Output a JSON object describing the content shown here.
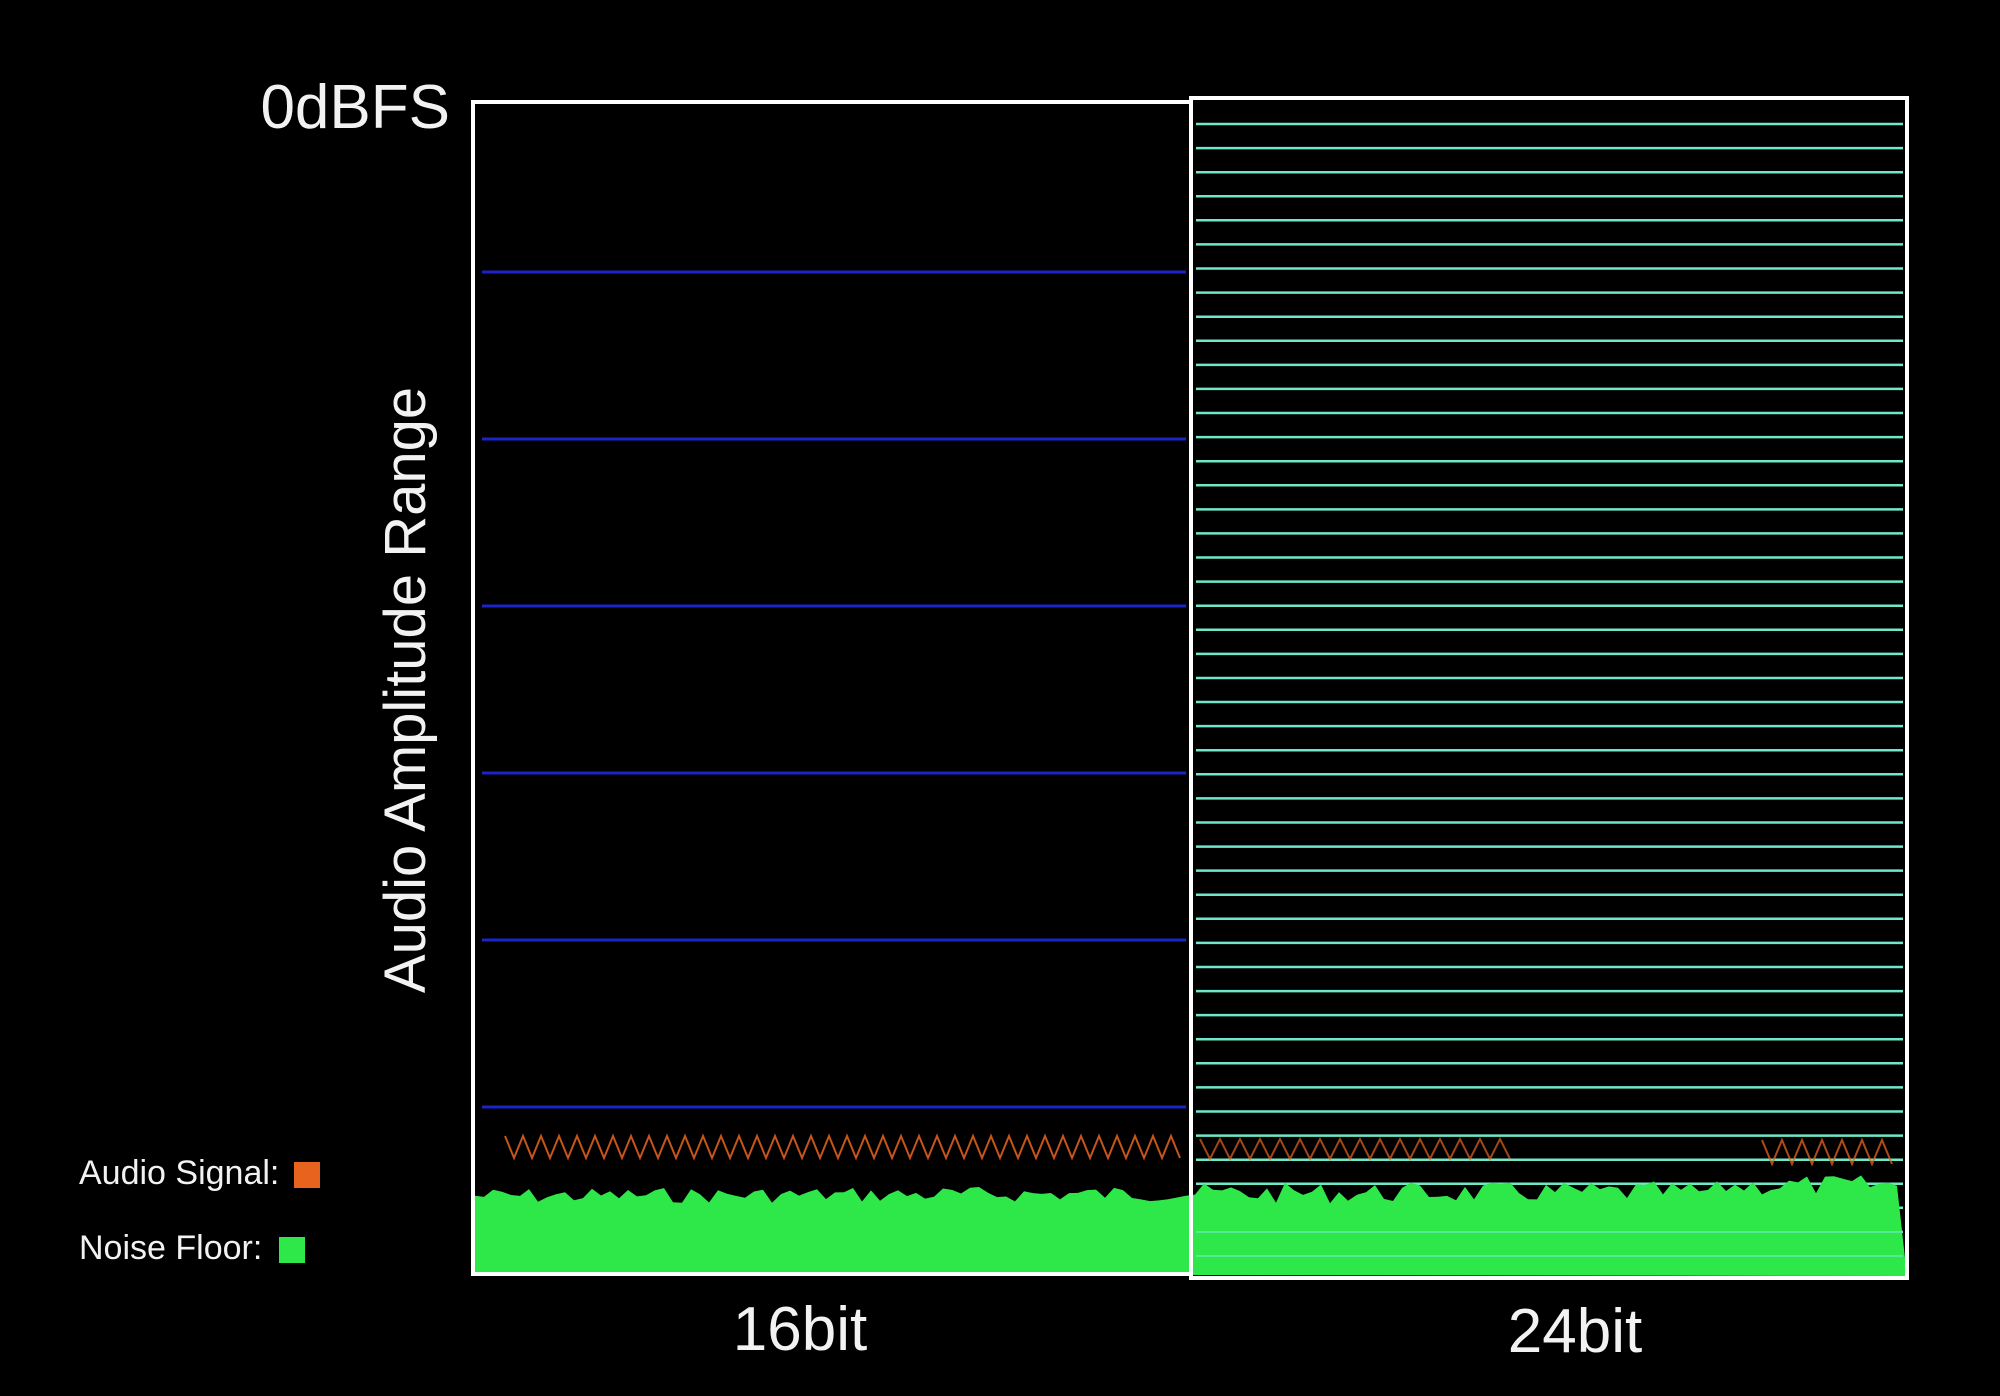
{
  "top_label": "0dBFS",
  "y_axis_label": "Audio Amplitude Range",
  "columns": [
    {
      "label": "16bit",
      "quantization_steps": 6
    },
    {
      "label": "24bit",
      "quantization_steps": 48
    }
  ],
  "legend": [
    {
      "label": "Audio Signal:",
      "color": "#e8641e"
    },
    {
      "label": "Noise Floor:",
      "color": "#2ee84a"
    }
  ],
  "colors": {
    "background": "#000000",
    "frame": "#ffffff",
    "steps_16bit": "#1a24c8",
    "steps_24bit": "#6fe8c8",
    "signal": "#e8641e",
    "noise_floor": "#2ee84a"
  },
  "icons": {
    "signal_swatch": "orange-square",
    "noise_swatch": "green-square"
  }
}
